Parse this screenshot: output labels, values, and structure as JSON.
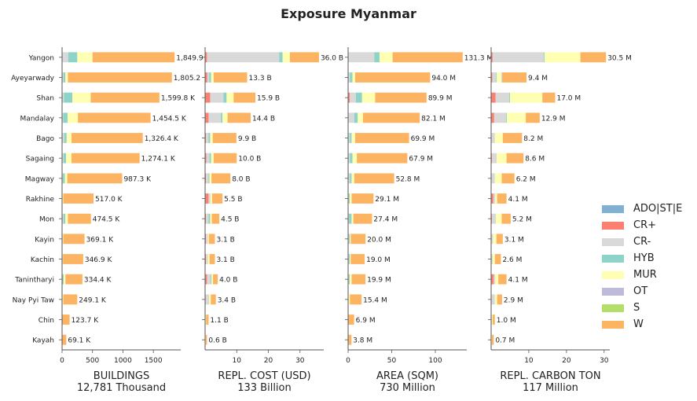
{
  "title": "Exposure Myanmar",
  "legend": [
    {
      "label": "ADO|ST|E",
      "color": "#80b1d3"
    },
    {
      "label": "CR+",
      "color": "#fb8072"
    },
    {
      "label": "CR-",
      "color": "#d9d9d9"
    },
    {
      "label": "HYB",
      "color": "#8dd3c7"
    },
    {
      "label": "MUR",
      "color": "#ffffb3"
    },
    {
      "label": "OT",
      "color": "#bebada"
    },
    {
      "label": "S",
      "color": "#b3de69"
    },
    {
      "label": "W",
      "color": "#fdb462"
    }
  ],
  "chart_data": {
    "type": "bar",
    "orientation": "horizontal",
    "stacked": true,
    "grid": false,
    "legend_position": "right",
    "categories": [
      "Yangon",
      "Ayeyarwady",
      "Shan",
      "Mandalay",
      "Bago",
      "Sagaing",
      "Magway",
      "Rakhine",
      "Mon",
      "Kayin",
      "Kachin",
      "Tanintharyi",
      "Nay Pyi Taw",
      "Chin",
      "Kayah"
    ],
    "series_order": [
      "ADO|ST|E",
      "CR+",
      "CR-",
      "HYB",
      "MUR",
      "OT",
      "S",
      "W"
    ],
    "panels": [
      {
        "xlabel": "BUILDINGS",
        "subtitle": "12,781 Thousand",
        "xlim": [
          0,
          1950
        ],
        "xticks": [
          0,
          500,
          1000,
          1500
        ],
        "xtick_labels": [
          "0",
          "500",
          "1000",
          "1500"
        ],
        "value_labels": [
          "1,849.9",
          "1,805.2",
          "1,599.8 K",
          "1,454.5 K",
          "1,326.4 K",
          "1,274.1 K",
          "987.3 K",
          "517.0 K",
          "474.5 K",
          "369.1 K",
          "346.9 K",
          "334.4 K",
          "249.1 K",
          "123.7 K",
          "69.1 K"
        ],
        "stacks": [
          [
            0,
            0,
            100,
            150,
            0,
            0,
            0,
            0
          ],
          [
            0,
            0,
            25,
            30,
            0,
            0,
            0,
            0
          ],
          [
            0,
            0,
            30,
            140,
            0,
            0,
            0,
            0
          ],
          [
            0,
            0,
            20,
            70,
            0,
            0,
            0,
            0
          ],
          [
            0,
            0,
            35,
            40,
            0,
            0,
            0,
            0
          ],
          [
            0,
            0,
            25,
            40,
            0,
            0,
            0,
            0
          ],
          [
            0,
            0,
            15,
            30,
            0,
            0,
            0,
            0
          ],
          [
            0,
            0,
            0,
            0,
            0,
            0,
            0,
            0
          ],
          [
            0,
            0,
            25,
            30,
            0,
            0,
            0,
            0
          ],
          [
            0,
            0,
            0,
            10,
            0,
            0,
            0,
            0
          ],
          [
            0,
            0,
            0,
            10,
            0,
            0,
            0,
            0
          ],
          [
            0,
            0,
            0,
            25,
            0,
            0,
            0,
            0
          ],
          [
            0,
            0,
            0,
            0,
            0,
            0,
            0,
            0
          ],
          [
            0,
            0,
            0,
            0,
            0,
            0,
            0,
            0
          ],
          [
            0,
            0,
            0,
            0,
            0,
            0,
            0,
            0
          ]
        ],
        "stacks_full": [
          [
            0,
            0,
            100,
            150,
            250,
            0,
            0,
            1349.9
          ],
          [
            0,
            0,
            25,
            30,
            40,
            0,
            0,
            1710.2
          ],
          [
            0,
            0,
            30,
            140,
            300,
            0,
            0,
            1129.8
          ],
          [
            0,
            0,
            20,
            70,
            170,
            0,
            0,
            1194.5
          ],
          [
            0,
            0,
            35,
            40,
            80,
            0,
            0,
            1171.4
          ],
          [
            0,
            0,
            25,
            40,
            90,
            0,
            0,
            1119.1
          ],
          [
            0,
            0,
            15,
            30,
            40,
            0,
            0,
            902.3
          ],
          [
            0,
            0,
            0,
            0,
            20,
            0,
            0,
            497.0
          ],
          [
            0,
            0,
            25,
            30,
            40,
            0,
            0,
            379.5
          ],
          [
            0,
            0,
            0,
            10,
            10,
            0,
            0,
            349.1
          ],
          [
            0,
            0,
            0,
            10,
            5,
            0,
            0,
            331.9
          ],
          [
            0,
            0,
            0,
            25,
            30,
            0,
            0,
            279.4
          ],
          [
            0,
            0,
            0,
            0,
            20,
            0,
            0,
            229.1
          ],
          [
            0,
            0,
            0,
            0,
            0,
            0,
            0,
            123.7
          ],
          [
            0,
            0,
            0,
            0,
            0,
            0,
            0,
            69.1
          ]
        ]
      },
      {
        "xlabel": "REPL. COST (USD)",
        "subtitle": "133 Billion",
        "xlim": [
          0,
          37.5
        ],
        "xticks": [
          10,
          20,
          30
        ],
        "xtick_labels": [
          "10",
          "20",
          "30"
        ],
        "value_labels": [
          "36.0 B",
          "13.3 B",
          "15.9 B",
          "14.4 B",
          "9.9 B",
          "10.0 B",
          "8.0 B",
          "5.5 B",
          "4.5 B",
          "3.1 B",
          "3.1 B",
          "4.0 B",
          "3.4 B",
          "1.1 B",
          "0.6 B"
        ],
        "stacks_full": [
          [
            0,
            0.6,
            22.8,
            1.1,
            2.3,
            0,
            0,
            9.2
          ],
          [
            0,
            0.7,
            0.6,
            0.6,
            0.8,
            0,
            0,
            10.6
          ],
          [
            0,
            1.6,
            4.2,
            1.0,
            2.2,
            0,
            0,
            6.9
          ],
          [
            0,
            1.1,
            3.9,
            0.5,
            1.6,
            0,
            0,
            7.3
          ],
          [
            0,
            0.3,
            0.8,
            0.5,
            0.8,
            0,
            0,
            7.5
          ],
          [
            0,
            0.4,
            1.0,
            0.5,
            0.8,
            0,
            0,
            7.3
          ],
          [
            0,
            0.3,
            0.8,
            0.3,
            0.6,
            0,
            0,
            6.0
          ],
          [
            0,
            1.1,
            0.6,
            0,
            0.5,
            0,
            0,
            3.3
          ],
          [
            0,
            0.3,
            0.8,
            0.5,
            0.5,
            0,
            0,
            2.4
          ],
          [
            0,
            0.3,
            0.6,
            0,
            0.3,
            0,
            0,
            1.9
          ],
          [
            0,
            0.3,
            0.6,
            0,
            0.5,
            0,
            0,
            1.7
          ],
          [
            0,
            0.6,
            1.1,
            0.3,
            0.5,
            0,
            0,
            1.5
          ],
          [
            0,
            0.2,
            1.1,
            0,
            0.5,
            0,
            0,
            1.6
          ],
          [
            0,
            0.1,
            0,
            0,
            0.2,
            0,
            0,
            0.8
          ],
          [
            0,
            0.1,
            0,
            0,
            0.1,
            0,
            0,
            0.4
          ]
        ]
      },
      {
        "xlabel": "AREA (SQM)",
        "subtitle": "730 Million",
        "xlim": [
          0,
          136
        ],
        "xticks": [
          0,
          50,
          100
        ],
        "xtick_labels": [
          "0",
          "50",
          "100"
        ],
        "value_labels": [
          "131.3 M",
          "94.0 M",
          "89.9 M",
          "82.1 M",
          "69.9 M",
          "67.9 M",
          "52.8 M",
          "29.1 M",
          "27.4 M",
          "20.0 M",
          "19.0 M",
          "19.9 M",
          "15.4 M",
          "6.9 M",
          "3.8 M"
        ],
        "stacks_full": [
          [
            0,
            0,
            30,
            6,
            15,
            0,
            0,
            80.3
          ],
          [
            0,
            0,
            2,
            3,
            3,
            0,
            0,
            86.0
          ],
          [
            0,
            2,
            7,
            7,
            15,
            0,
            0,
            58.9
          ],
          [
            0,
            0,
            7,
            4,
            6,
            0,
            0,
            65.1
          ],
          [
            0,
            0,
            2,
            2,
            4,
            0,
            0,
            61.9
          ],
          [
            0,
            0,
            2,
            3,
            5,
            0,
            0,
            57.9
          ],
          [
            0,
            0,
            2,
            2,
            3,
            0,
            0,
            45.8
          ],
          [
            0,
            0,
            1,
            1,
            2,
            0,
            0,
            25.1
          ],
          [
            0,
            0,
            1,
            3,
            2,
            0,
            0,
            21.4
          ],
          [
            0,
            0,
            1,
            1,
            1,
            0,
            0,
            17.0
          ],
          [
            0,
            0,
            1,
            1,
            1,
            0,
            0,
            16.0
          ],
          [
            0,
            0,
            1,
            1,
            2,
            0,
            0,
            15.9
          ],
          [
            0,
            0,
            0,
            0,
            2,
            0,
            0,
            13.4
          ],
          [
            0,
            0,
            0,
            0,
            0,
            0,
            0,
            6.9
          ],
          [
            0,
            0,
            0,
            0,
            0,
            0,
            0,
            3.8
          ]
        ]
      },
      {
        "xlabel": "REPL. CARBON TON",
        "subtitle": "117 Million",
        "xlim": [
          0,
          31.5
        ],
        "xticks": [
          10,
          20,
          30
        ],
        "xtick_labels": [
          "10",
          "20",
          "30"
        ],
        "value_labels": [
          "30.5 M",
          "9.4 M",
          "17.0 M",
          "12.9 M",
          "8.2 M",
          "8.6 M",
          "6.2 M",
          "4.1 M",
          "5.2 M",
          "3.1 M",
          "2.6 M",
          "4.1 M",
          "2.9 M",
          "1.0 M",
          "0.7 M"
        ],
        "stacks_full": [
          [
            0,
            0.4,
            13.6,
            0.2,
            9.5,
            0,
            0,
            6.8
          ],
          [
            0,
            0.3,
            1.0,
            0.2,
            1.3,
            0.2,
            0,
            6.4
          ],
          [
            0,
            1.2,
            3.6,
            0.2,
            8.6,
            0,
            0,
            3.4
          ],
          [
            0,
            0.8,
            3.2,
            0.2,
            5.0,
            0,
            0,
            3.7
          ],
          [
            0,
            0.1,
            0.9,
            0,
            2.1,
            0,
            0,
            5.1
          ],
          [
            0,
            0.2,
            1.3,
            0,
            2.6,
            0,
            0,
            4.5
          ],
          [
            0,
            0.1,
            0.9,
            0,
            1.8,
            0,
            0,
            3.4
          ],
          [
            0,
            0.6,
            0.5,
            0,
            0.5,
            0,
            0,
            2.5
          ],
          [
            0,
            0.2,
            1.1,
            0,
            1.5,
            0,
            0,
            2.4
          ],
          [
            0,
            0.1,
            0.4,
            0,
            0.9,
            0,
            0,
            1.7
          ],
          [
            0,
            0.1,
            0.3,
            0,
            0.6,
            0,
            0,
            1.6
          ],
          [
            0,
            0.7,
            0.4,
            0,
            0.8,
            0,
            0,
            2.2
          ],
          [
            0,
            0.1,
            0.9,
            0,
            0.6,
            0,
            0,
            1.3
          ],
          [
            0,
            0,
            0.2,
            0,
            0.2,
            0,
            0,
            0.6
          ],
          [
            0,
            0,
            0.1,
            0,
            0.1,
            0,
            0,
            0.5
          ]
        ]
      }
    ]
  }
}
